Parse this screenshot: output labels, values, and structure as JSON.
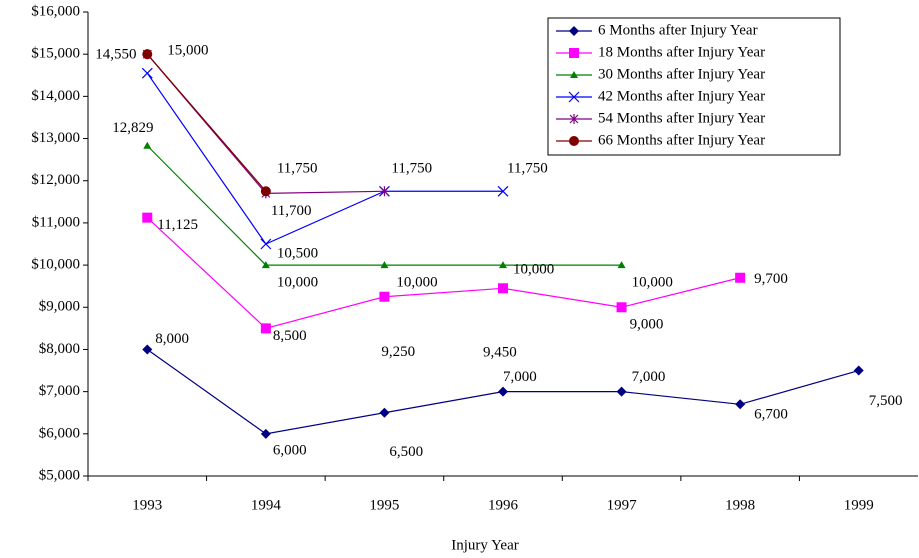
{
  "chart_data": {
    "type": "line",
    "x_label": "Injury Year",
    "categories": [
      "1993",
      "1994",
      "1995",
      "1996",
      "1997",
      "1998",
      "1999"
    ],
    "ylim": [
      5000,
      16000
    ],
    "yticks": [
      {
        "value": 5000,
        "label": "$5,000"
      },
      {
        "value": 6000,
        "label": "$6,000"
      },
      {
        "value": 7000,
        "label": "$7,000"
      },
      {
        "value": 8000,
        "label": "$8,000"
      },
      {
        "value": 9000,
        "label": "$9,000"
      },
      {
        "value": 10000,
        "label": "$10,000"
      },
      {
        "value": 11000,
        "label": "$11,000"
      },
      {
        "value": 12000,
        "label": "$12,000"
      },
      {
        "value": 13000,
        "label": "$13,000"
      },
      {
        "value": 14000,
        "label": "$14,000"
      },
      {
        "value": 15000,
        "label": "$15,000"
      },
      {
        "value": 16000,
        "label": "$16,000"
      }
    ],
    "legend": "top-right",
    "series": [
      {
        "name": "6 Months after Injury Year",
        "color": "#000080",
        "marker": "diamond",
        "values": [
          8000,
          6000,
          6500,
          7000,
          7000,
          6700,
          7500
        ],
        "value_labels": [
          "8,000",
          "6,000",
          "6,500",
          "7,000",
          "7,000",
          "6,700",
          "7,500"
        ]
      },
      {
        "name": "18 Months after Injury Year",
        "color": "#ff00ff",
        "marker": "square",
        "values": [
          11125,
          8500,
          9250,
          9450,
          9000,
          9700,
          null
        ],
        "value_labels": [
          "11,125",
          "8,500",
          "9,250",
          "9,450",
          "9,000",
          "9,700",
          null
        ]
      },
      {
        "name": "30 Months after Injury Year",
        "color": "#008000",
        "marker": "triangle",
        "values": [
          12829,
          10000,
          10000,
          10000,
          10000,
          null,
          null
        ],
        "value_labels": [
          "12,829",
          "10,000",
          "10,000",
          "10,000",
          "10,000",
          null,
          null
        ]
      },
      {
        "name": "42 Months after Injury Year",
        "color": "#0000ff",
        "marker": "x",
        "values": [
          14550,
          10500,
          11750,
          11750,
          null,
          null,
          null
        ],
        "value_labels": [
          "14,550",
          "10,500",
          "11,750",
          "11,750",
          null,
          null,
          null
        ]
      },
      {
        "name": "54 Months after Injury Year",
        "color": "#800080",
        "marker": "star",
        "values": [
          15000,
          11700,
          11750,
          null,
          null,
          null,
          null
        ],
        "value_labels": [
          null,
          "11,700",
          null,
          null,
          null,
          null,
          null
        ]
      },
      {
        "name": "66 Months after Injury Year",
        "color": "#800000",
        "marker": "circle",
        "values": [
          15000,
          11750,
          null,
          null,
          null,
          null,
          null
        ],
        "value_labels": [
          "15,000",
          "11,750",
          null,
          null,
          null,
          null,
          null
        ]
      }
    ]
  }
}
